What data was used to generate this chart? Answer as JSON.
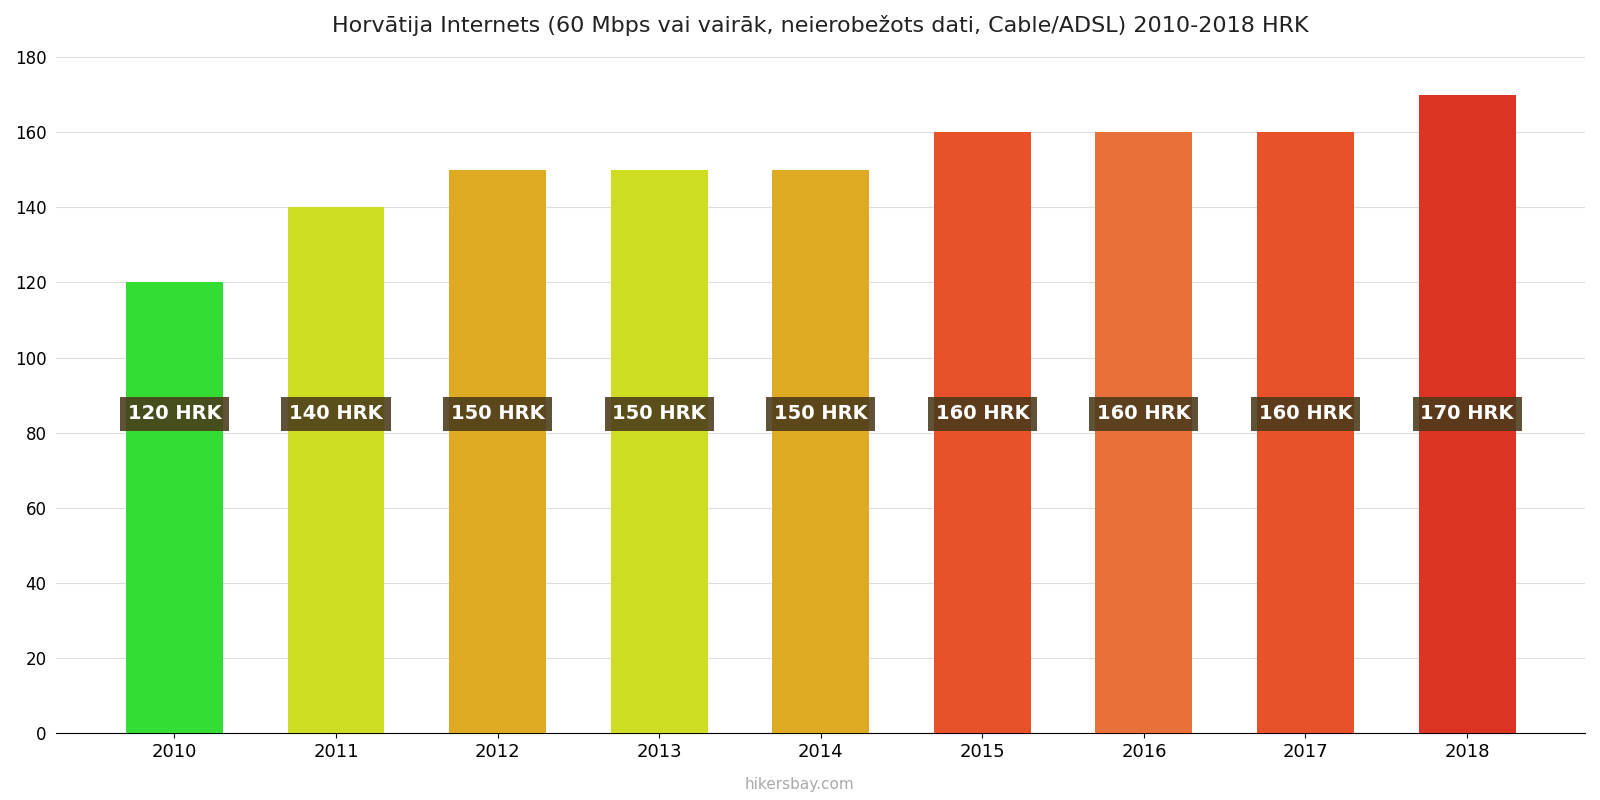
{
  "years": [
    2010,
    2011,
    2012,
    2013,
    2014,
    2015,
    2016,
    2017,
    2018
  ],
  "values": [
    120,
    140,
    150,
    150,
    150,
    160,
    160,
    160,
    170
  ],
  "labels": [
    "120 HRK",
    "140 HRK",
    "150 HRK",
    "150 HRK",
    "150 HRK",
    "160 HRK",
    "160 HRK",
    "160 HRK",
    "170 HRK"
  ],
  "bar_colors": [
    "#33dd33",
    "#ccdd22",
    "#ddaa22",
    "#ccdd22",
    "#ddaa22",
    "#e8522a",
    "#e8713a",
    "#e8522a",
    "#dd3322"
  ],
  "title": "Horvātija Internets (60 Mbps vai vairāk, neierobežots dati, Cable/ADSL) 2010-2018 HRK",
  "ylabel": "",
  "ylim": [
    0,
    180
  ],
  "yticks": [
    0,
    20,
    40,
    60,
    80,
    100,
    120,
    140,
    160,
    180
  ],
  "label_bg_color": "#4a3a1a",
  "label_text_color": "#ffffff",
  "label_fontsize": 14,
  "title_fontsize": 16,
  "footer_text": "hikersbay.com",
  "background_color": "#ffffff"
}
